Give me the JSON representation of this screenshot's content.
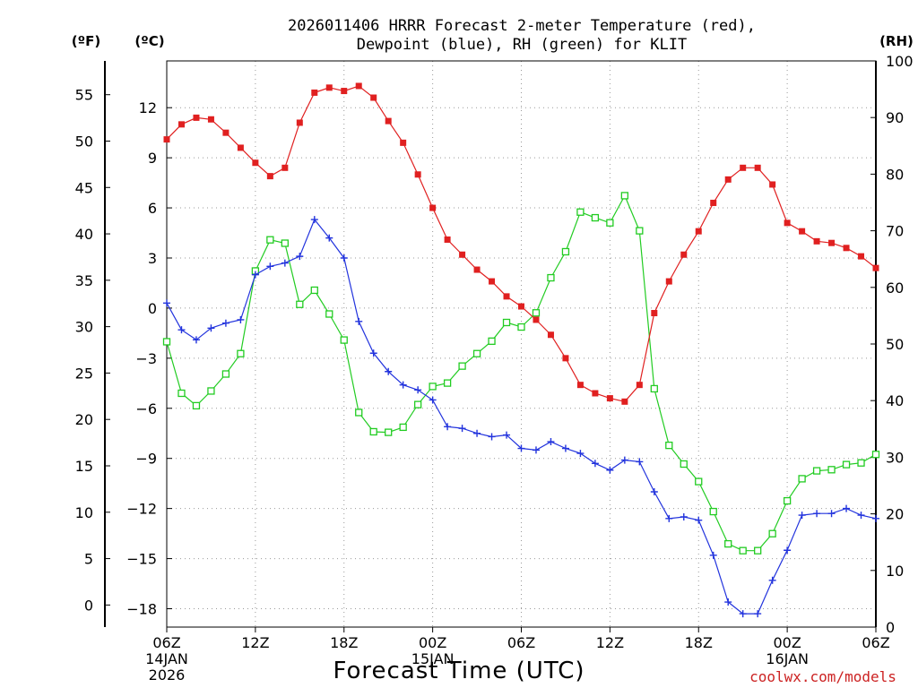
{
  "chart_data": {
    "type": "line",
    "title": [
      "2026011406 HRRR Forecast 2-meter Temperature (red),",
      "Dewpoint (blue), RH (green) for KLIT"
    ],
    "xlabel": "Forecast Time (UTC)",
    "units": {
      "fahrenheit": "(ºF)",
      "celsius": "(ºC)",
      "rh": "(RH)"
    },
    "credit": "coolwx.com/models",
    "x_ticks": [
      {
        "hour": 0,
        "label": "06Z",
        "date": "14JAN",
        "year": "2026"
      },
      {
        "hour": 6,
        "label": "12Z"
      },
      {
        "hour": 12,
        "label": "18Z"
      },
      {
        "hour": 18,
        "label": "00Z",
        "date": "15JAN"
      },
      {
        "hour": 24,
        "label": "06Z"
      },
      {
        "hour": 30,
        "label": "12Z"
      },
      {
        "hour": 36,
        "label": "18Z"
      },
      {
        "hour": 42,
        "label": "00Z",
        "date": "16JAN"
      },
      {
        "hour": 48,
        "label": "06Z"
      }
    ],
    "xlim": [
      0,
      48
    ],
    "ylim_celsius": [
      -19.1,
      14.8
    ],
    "ylim_rh": [
      0,
      100
    ],
    "yticks_fahrenheit": [
      "0",
      "5",
      "10",
      "15",
      "20",
      "25",
      "30",
      "35",
      "40",
      "45",
      "50",
      "55"
    ],
    "yticks_celsius": [
      "−18",
      "−15",
      "−12",
      "−9",
      "−6",
      "−3",
      "0",
      "3",
      "6",
      "9",
      "12"
    ],
    "yticks_rh": [
      "0",
      "10",
      "20",
      "30",
      "40",
      "50",
      "60",
      "70",
      "80",
      "90",
      "100"
    ],
    "grid": true,
    "series": [
      {
        "name": "Temperature (red)",
        "axis": "celsius",
        "color": "#e02020",
        "marker": "filled-square",
        "values": [
          10.1,
          11.0,
          11.4,
          11.3,
          10.5,
          9.6,
          8.7,
          7.9,
          8.4,
          11.1,
          12.9,
          13.2,
          13.0,
          13.3,
          12.6,
          11.2,
          9.9,
          8.0,
          6.0,
          4.1,
          3.2,
          2.3,
          1.6,
          0.7,
          0.1,
          -0.7,
          -1.6,
          -3.0,
          -4.6,
          -5.1,
          -5.4,
          -5.6,
          -4.6,
          -0.3,
          1.6,
          3.2,
          4.6,
          6.3,
          7.7,
          8.4,
          8.4,
          7.4,
          5.1,
          4.6,
          4.0,
          3.9,
          3.6,
          3.1,
          2.4
        ]
      },
      {
        "name": "Dewpoint (blue)",
        "axis": "celsius",
        "color": "#2233dd",
        "marker": "plus",
        "values": [
          0.3,
          -1.3,
          -1.9,
          -1.2,
          -0.9,
          -0.7,
          2.0,
          2.5,
          2.7,
          3.1,
          5.3,
          4.2,
          3.0,
          -0.8,
          -2.7,
          -3.8,
          -4.6,
          -4.9,
          -5.5,
          -7.1,
          -7.2,
          -7.5,
          -7.7,
          -7.6,
          -8.4,
          -8.5,
          -8.0,
          -8.4,
          -8.7,
          -9.3,
          -9.7,
          -9.1,
          -9.2,
          -11.0,
          -12.6,
          -12.5,
          -12.7,
          -14.8,
          -17.6,
          -18.3,
          -18.3,
          -16.3,
          -14.5,
          -12.4,
          -12.3,
          -12.3,
          -12.0,
          -12.4,
          -12.6
        ]
      },
      {
        "name": "RH (green)",
        "axis": "rh",
        "color": "#22cc22",
        "marker": "open-square",
        "values": [
          50.4,
          41.3,
          39.1,
          41.7,
          44.7,
          48.3,
          62.9,
          68.4,
          67.8,
          57.0,
          59.5,
          55.3,
          50.7,
          37.9,
          34.5,
          34.4,
          35.3,
          39.3,
          42.5,
          43.1,
          46.1,
          48.3,
          50.5,
          53.8,
          53.0,
          55.5,
          61.7,
          66.3,
          73.3,
          72.3,
          71.4,
          76.2,
          70.0,
          42.1,
          32.1,
          28.8,
          25.7,
          20.4,
          14.7,
          13.5,
          13.5,
          16.5,
          22.3,
          26.2,
          27.6,
          27.8,
          28.7,
          29.0,
          30.5
        ]
      }
    ]
  }
}
